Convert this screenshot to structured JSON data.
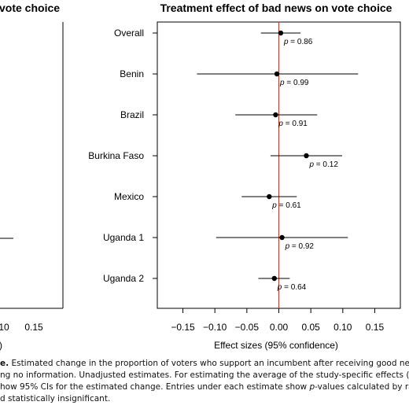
{
  "left_panel": {
    "title_fragment": "vote choice",
    "tick_labels": [
      "10",
      "0.15"
    ],
    "xlabel_fragment": ")"
  },
  "chart_data": {
    "type": "scatter",
    "subtype": "forest-plot",
    "title": "Treatment effect of bad news on vote choice",
    "xlabel": "Effect sizes (95% confidence)",
    "ylabel": "",
    "xlim": [
      -0.19,
      0.19
    ],
    "xticks": [
      -0.15,
      -0.1,
      -0.05,
      0.0,
      0.05,
      0.1,
      0.15
    ],
    "xtick_labels": [
      "−0.15",
      "−0.10",
      "−0.05",
      "0.00",
      "0.05",
      "0.10",
      "0.15"
    ],
    "reference_line": {
      "x": 0,
      "color": "#c0392b"
    },
    "categories": [
      "Overall",
      "Benin",
      "Brazil",
      "Burkina Faso",
      "Mexico",
      "Uganda 1",
      "Uganda 2"
    ],
    "estimates": [
      0.003,
      -0.003,
      -0.005,
      0.043,
      -0.015,
      0.005,
      -0.007
    ],
    "ci_low": [
      -0.028,
      -0.128,
      -0.068,
      -0.013,
      -0.058,
      -0.098,
      -0.032
    ],
    "ci_high": [
      0.034,
      0.124,
      0.06,
      0.099,
      0.028,
      0.108,
      0.017
    ],
    "p_value_prefix": "p",
    "p_values": [
      "= 0.86",
      "= 0.99",
      "= 0.91",
      "= 0.12",
      "= 0.61",
      "= 0.92",
      "= 0.64"
    ],
    "grid": false,
    "legend": "none"
  },
  "caption": {
    "line1_bold": "e.",
    "line1_rest": " Estimated change in the proportion of voters who support an incumbent after receiving good news",
    "line2": "ng no information. Unadjusted estimates. For estimating the average of the study-specific effects (top row),",
    "line3_start": "how 95% CIs for the estimated change. Entries under each estimate show ",
    "line3_italic": "p",
    "line3_end": "-values calculated by random-",
    "line4": "d statistically insignificant."
  }
}
